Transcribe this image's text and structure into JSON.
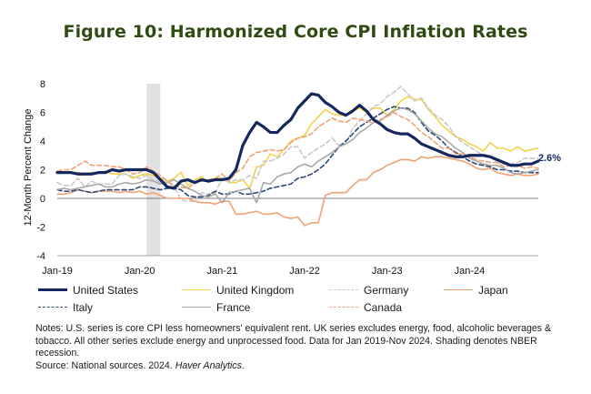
{
  "title": "Figure 10: Harmonized Core CPI Inflation Rates",
  "chart_data": {
    "type": "line",
    "ylabel": "12-Month Percent Change",
    "ylim": [
      -4,
      8
    ],
    "yticks": [
      -4,
      -2,
      0,
      2,
      4,
      6,
      8
    ],
    "x_ticks": [
      {
        "label": "Jan-19",
        "t": 0
      },
      {
        "label": "Jan-20",
        "t": 12
      },
      {
        "label": "Jan-21",
        "t": 24
      },
      {
        "label": "Jan-22",
        "t": 36
      },
      {
        "label": "Jan-23",
        "t": 48
      },
      {
        "label": "Jan-24",
        "t": 60
      }
    ],
    "x_unit": "months since Jan-2019",
    "x_range": [
      0,
      70
    ],
    "shading": {
      "start": 13,
      "end": 15
    },
    "end_label": "2.6%",
    "series": [
      {
        "name": "United States",
        "color": "#14285f",
        "width": 3.2,
        "dash": "",
        "values": [
          1.8,
          1.8,
          1.8,
          1.7,
          1.7,
          1.7,
          1.8,
          1.8,
          2.0,
          1.9,
          2.0,
          2.0,
          2.0,
          2.0,
          1.8,
          1.3,
          0.8,
          0.7,
          1.2,
          1.3,
          1.1,
          1.3,
          1.2,
          1.3,
          1.3,
          1.4,
          2.0,
          3.7,
          4.6,
          5.3,
          5.0,
          4.6,
          4.6,
          5.1,
          5.5,
          6.3,
          6.8,
          7.3,
          7.2,
          6.7,
          6.4,
          6.0,
          5.8,
          6.1,
          6.5,
          6.1,
          5.5,
          5.2,
          4.8,
          4.6,
          4.5,
          4.5,
          4.2,
          3.8,
          3.6,
          3.4,
          3.2,
          3.0,
          2.9,
          2.9,
          3.0,
          3.0,
          3.0,
          2.9,
          2.7,
          2.5,
          2.3,
          2.3,
          2.4,
          2.4,
          2.6
        ]
      },
      {
        "name": "United Kingdom",
        "color": "#f2d24f",
        "width": 1.6,
        "dash": "",
        "values": [
          1.9,
          1.8,
          1.8,
          1.8,
          1.7,
          1.8,
          1.8,
          1.9,
          1.7,
          1.7,
          1.7,
          1.4,
          1.6,
          1.7,
          1.6,
          1.4,
          1.2,
          1.4,
          1.8,
          0.9,
          1.3,
          1.5,
          1.1,
          1.4,
          1.4,
          1.1,
          1.1,
          1.3,
          0.7,
          2.2,
          2.3,
          3.1,
          2.9,
          3.4,
          4.0,
          4.2,
          4.4,
          5.2,
          5.7,
          6.2,
          5.9,
          5.8,
          5.8,
          6.1,
          6.3,
          6.0,
          6.3,
          6.3,
          5.8,
          6.2,
          6.8,
          7.1,
          6.9,
          6.9,
          6.2,
          5.7,
          5.1,
          4.7,
          4.3,
          4.1,
          3.8,
          3.6,
          3.3,
          3.9,
          3.5,
          3.5,
          3.3,
          3.6,
          3.3,
          3.4,
          3.5
        ]
      },
      {
        "name": "Germany",
        "color": "#c9c9c9",
        "width": 1.6,
        "dash": "5,3",
        "values": [
          1.1,
          0.9,
          0.9,
          1.4,
          0.8,
          1.2,
          1.0,
          1.0,
          1.0,
          1.6,
          1.7,
          1.5,
          1.4,
          1.6,
          1.3,
          1.1,
          1.2,
          0.8,
          -0.1,
          -0.2,
          -0.2,
          0.4,
          0.3,
          0.4,
          1.4,
          1.1,
          1.3,
          1.3,
          1.6,
          1.4,
          2.6,
          2.6,
          2.8,
          3.1,
          3.6,
          3.6,
          2.8,
          3.2,
          3.5,
          3.8,
          4.2,
          3.7,
          3.8,
          4.9,
          5.4,
          5.9,
          6.4,
          6.6,
          7.1,
          7.4,
          7.8,
          7.3,
          6.8,
          7.0,
          6.3,
          5.8,
          5.5,
          5.0,
          4.3,
          3.9,
          3.6,
          3.3,
          3.0,
          2.9,
          2.5,
          2.4,
          2.4,
          2.5,
          2.8,
          2.8,
          2.8
        ]
      },
      {
        "name": "Japan",
        "color": "#f0a274",
        "width": 1.6,
        "dash": "",
        "values": [
          0.3,
          0.3,
          0.4,
          0.6,
          0.5,
          0.4,
          0.5,
          0.5,
          0.5,
          0.4,
          0.5,
          0.4,
          0.5,
          0.3,
          0.4,
          0.2,
          0.0,
          0.0,
          0.0,
          0.0,
          -0.2,
          -0.3,
          -0.3,
          -0.4,
          -0.2,
          -0.2,
          -1.1,
          -1.1,
          -1.0,
          -0.9,
          -1.1,
          -1.1,
          -1.0,
          -1.3,
          -1.4,
          -1.3,
          -1.9,
          -1.7,
          -1.7,
          0.2,
          0.4,
          0.4,
          0.4,
          0.9,
          1.3,
          1.3,
          1.8,
          2.0,
          2.3,
          2.5,
          2.7,
          2.7,
          2.6,
          2.9,
          2.8,
          2.9,
          2.9,
          2.8,
          2.7,
          2.6,
          2.4,
          2.1,
          2.0,
          2.1,
          1.8,
          1.7,
          1.6,
          1.7,
          1.6,
          1.6,
          1.7
        ]
      },
      {
        "name": "Italy",
        "color": "#2c4a78",
        "width": 1.6,
        "dash": "5,3",
        "values": [
          0.6,
          0.5,
          0.5,
          0.6,
          0.5,
          0.4,
          0.5,
          0.6,
          0.6,
          0.6,
          0.6,
          0.6,
          0.8,
          0.8,
          0.7,
          0.6,
          0.7,
          0.7,
          0.6,
          0.2,
          0.1,
          0.1,
          0.2,
          0.5,
          0.3,
          0.3,
          0.5,
          0.3,
          0.3,
          0.4,
          0.5,
          0.7,
          0.8,
          0.9,
          1.0,
          1.4,
          1.5,
          1.7,
          2.0,
          2.4,
          3.0,
          3.6,
          4.0,
          4.5,
          5.0,
          5.3,
          5.6,
          5.9,
          6.2,
          6.4,
          6.3,
          6.3,
          6.0,
          5.3,
          4.7,
          4.4,
          4.0,
          3.5,
          3.2,
          2.9,
          2.6,
          2.4,
          2.3,
          2.2,
          2.0,
          2.0,
          1.9,
          1.9,
          1.8,
          1.8,
          1.8
        ]
      },
      {
        "name": "France",
        "color": "#a9a9a9",
        "width": 1.6,
        "dash": "",
        "values": [
          0.6,
          0.7,
          0.6,
          0.7,
          0.8,
          0.9,
          1.0,
          0.8,
          0.8,
          1.0,
          1.1,
          1.0,
          1.1,
          1.3,
          1.2,
          1.0,
          1.1,
          1.3,
          1.0,
          0.7,
          0.5,
          0.2,
          0.1,
          0.3,
          -0.3,
          0.4,
          0.5,
          0.6,
          0.7,
          -0.3,
          1.1,
          1.0,
          1.5,
          1.7,
          1.8,
          2.2,
          2.4,
          2.2,
          2.6,
          2.9,
          3.2,
          3.6,
          3.8,
          4.1,
          4.6,
          4.9,
          5.3,
          5.4,
          5.8,
          6.1,
          6.3,
          6.2,
          5.9,
          5.4,
          4.9,
          4.5,
          4.3,
          3.9,
          3.5,
          3.2,
          2.8,
          2.6,
          2.4,
          2.3,
          2.3,
          2.1,
          1.8,
          1.7,
          1.8,
          1.9,
          2.0
        ]
      },
      {
        "name": "Canada",
        "color": "#f0a274",
        "width": 1.6,
        "dash": "5,3",
        "values": [
          1.9,
          2.0,
          2.0,
          2.3,
          2.6,
          2.3,
          2.3,
          2.3,
          2.2,
          2.2,
          2.0,
          1.7,
          1.8,
          2.2,
          1.9,
          1.6,
          1.2,
          0.9,
          0.8,
          0.7,
          1.1,
          1.2,
          1.3,
          1.4,
          1.7,
          1.2,
          1.8,
          2.1,
          2.9,
          3.2,
          3.3,
          3.4,
          3.3,
          3.4,
          3.9,
          4.2,
          4.3,
          4.5,
          5.0,
          5.3,
          5.6,
          5.4,
          5.3,
          5.6,
          5.5,
          5.4,
          5.3,
          5.5,
          5.7,
          6.0,
          5.7,
          5.5,
          5.1,
          4.6,
          4.3,
          3.9,
          3.5,
          3.5,
          3.1,
          3.1,
          2.9,
          2.7,
          2.6,
          2.5,
          2.5,
          2.2,
          2.3,
          2.3,
          2.1,
          2.2,
          2.1
        ]
      }
    ]
  },
  "legend": {
    "items": [
      "United States",
      "United Kingdom",
      "Germany",
      "Japan",
      "Italy",
      "France",
      "Canada"
    ]
  },
  "notes": {
    "text1": "Notes: U.S. series is core CPI less homeowners' equivalent rent. UK series excludes energy, food, alcoholic beverages & tobacco. All other series exclude energy and unprocessed food. Data for Jan 2019-Nov 2024. Shading denotes NBER recession.",
    "source_prefix": "Source: National sources. 2024. ",
    "source_italic": "Haver Analytics",
    "source_suffix": "."
  }
}
